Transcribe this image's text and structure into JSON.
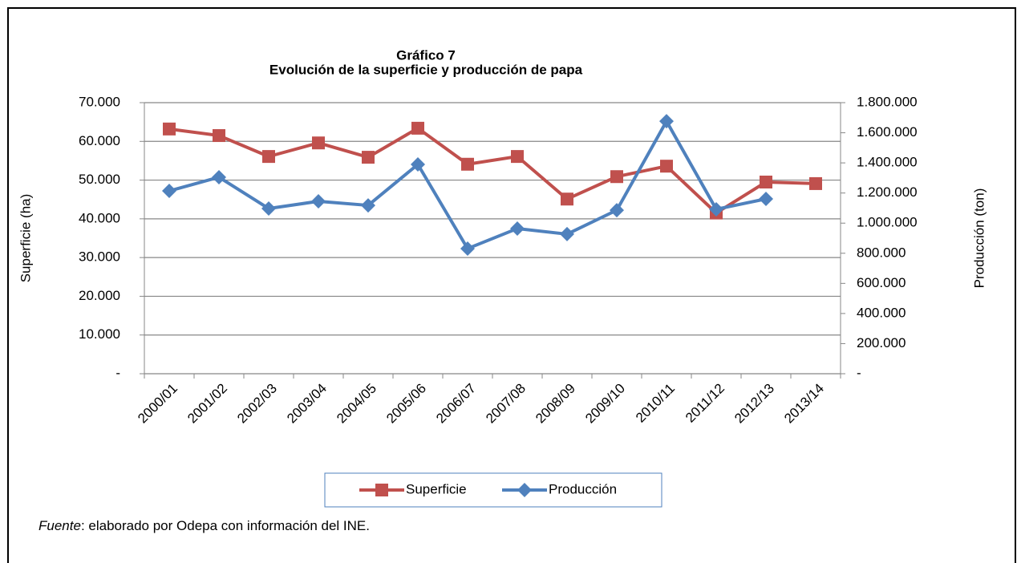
{
  "chart_data": {
    "type": "line",
    "title": "Gráfico 7",
    "subtitle": "Evolución de la superficie y producción de papa",
    "y_label": "Superficie (ha)",
    "y2_label": "Producción (ton)",
    "categories": [
      "2000/01",
      "2001/02",
      "2002/03",
      "2003/04",
      "2004/05",
      "2005/06",
      "2006/07",
      "2007/08",
      "2008/09",
      "2009/10",
      "2010/11",
      "2011/12",
      "2012/13",
      "2013/14"
    ],
    "series": [
      {
        "name": "Superficie",
        "color": "#c0504d",
        "marker": "square",
        "axis": "y",
        "values": [
          63200,
          61500,
          56100,
          59600,
          55900,
          63400,
          54100,
          56100,
          45100,
          50900,
          53600,
          41500,
          49500,
          49100
        ]
      },
      {
        "name": "Producción",
        "color": "#4f81bd",
        "marker": "diamond",
        "axis": "y2",
        "values": [
          1214000,
          1305000,
          1097000,
          1145000,
          1118000,
          1390000,
          831000,
          964000,
          927000,
          1086000,
          1677000,
          1092000,
          1161000,
          null
        ]
      }
    ],
    "ylim": [
      0,
      70000
    ],
    "yticks": [
      {
        "value": 0,
        "label": "-"
      },
      {
        "value": 10000,
        "label": "10.000"
      },
      {
        "value": 20000,
        "label": "20.000"
      },
      {
        "value": 30000,
        "label": "30.000"
      },
      {
        "value": 40000,
        "label": "40.000"
      },
      {
        "value": 50000,
        "label": "50.000"
      },
      {
        "value": 60000,
        "label": "60.000"
      },
      {
        "value": 70000,
        "label": "70.000"
      }
    ],
    "y2lim": [
      0,
      1800000
    ],
    "y2ticks": [
      {
        "value": 0,
        "label": "-"
      },
      {
        "value": 200000,
        "label": "200.000"
      },
      {
        "value": 400000,
        "label": "400.000"
      },
      {
        "value": 600000,
        "label": "600.000"
      },
      {
        "value": 800000,
        "label": "800.000"
      },
      {
        "value": 1000000,
        "label": "1.000.000"
      },
      {
        "value": 1200000,
        "label": "1.200.000"
      },
      {
        "value": 1400000,
        "label": "1.400.000"
      },
      {
        "value": 1600000,
        "label": "1.600.000"
      },
      {
        "value": 1800000,
        "label": "1.800.000"
      }
    ],
    "grid": true,
    "legend": "bottom",
    "footnote": {
      "label": "Fuente",
      "text": ": elaborado por Odepa con información del INE."
    }
  }
}
